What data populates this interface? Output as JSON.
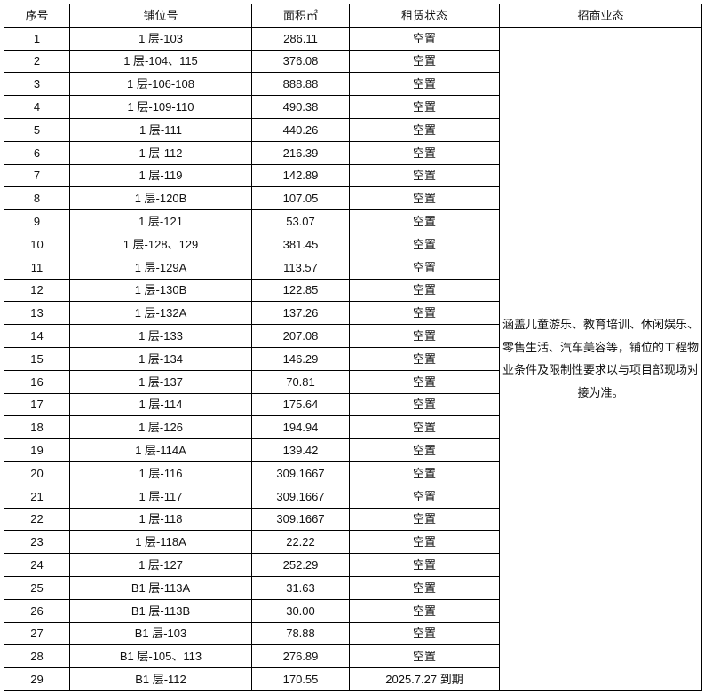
{
  "headers": [
    "序号",
    "铺位号",
    "面积㎡",
    "租赁状态",
    "招商业态"
  ],
  "business_scope": "涵盖儿童游乐、教育培训、休闲娱乐、零售生活、汽车美容等，铺位的工程物业条件及限制性要求以与项目部现场对接为准。",
  "rows": [
    [
      "1",
      "1 层-103",
      "286.11",
      "空置"
    ],
    [
      "2",
      "1 层-104、115",
      "376.08",
      "空置"
    ],
    [
      "3",
      "1 层-106-108",
      "888.88",
      "空置"
    ],
    [
      "4",
      "1 层-109-110",
      "490.38",
      "空置"
    ],
    [
      "5",
      "1 层-111",
      "440.26",
      "空置"
    ],
    [
      "6",
      "1 层-112",
      "216.39",
      "空置"
    ],
    [
      "7",
      "1 层-119",
      "142.89",
      "空置"
    ],
    [
      "8",
      "1 层-120B",
      "107.05",
      "空置"
    ],
    [
      "9",
      "1 层-121",
      "53.07",
      "空置"
    ],
    [
      "10",
      "1 层-128、129",
      "381.45",
      "空置"
    ],
    [
      "11",
      "1 层-129A",
      "113.57",
      "空置"
    ],
    [
      "12",
      "1 层-130B",
      "122.85",
      "空置"
    ],
    [
      "13",
      "1 层-132A",
      "137.26",
      "空置"
    ],
    [
      "14",
      "1 层-133",
      "207.08",
      "空置"
    ],
    [
      "15",
      "1 层-134",
      "146.29",
      "空置"
    ],
    [
      "16",
      "1 层-137",
      "70.81",
      "空置"
    ],
    [
      "17",
      "1 层-114",
      "175.64",
      "空置"
    ],
    [
      "18",
      "1 层-126",
      "194.94",
      "空置"
    ],
    [
      "19",
      "1 层-114A",
      "139.42",
      "空置"
    ],
    [
      "20",
      "1 层-116",
      "309.1667",
      "空置"
    ],
    [
      "21",
      "1 层-117",
      "309.1667",
      "空置"
    ],
    [
      "22",
      "1 层-118",
      "309.1667",
      "空置"
    ],
    [
      "23",
      "1 层-118A",
      "22.22",
      "空置"
    ],
    [
      "24",
      "1 层-127",
      "252.29",
      "空置"
    ],
    [
      "25",
      "B1 层-113A",
      "31.63",
      "空置"
    ],
    [
      "26",
      "B1 层-113B",
      "30.00",
      "空置"
    ],
    [
      "27",
      "B1 层-103",
      "78.88",
      "空置"
    ],
    [
      "28",
      "B1 层-105、113",
      "276.89",
      "空置"
    ],
    [
      "29",
      "B1 层-112",
      "170.55",
      "2025.7.27 到期"
    ]
  ]
}
